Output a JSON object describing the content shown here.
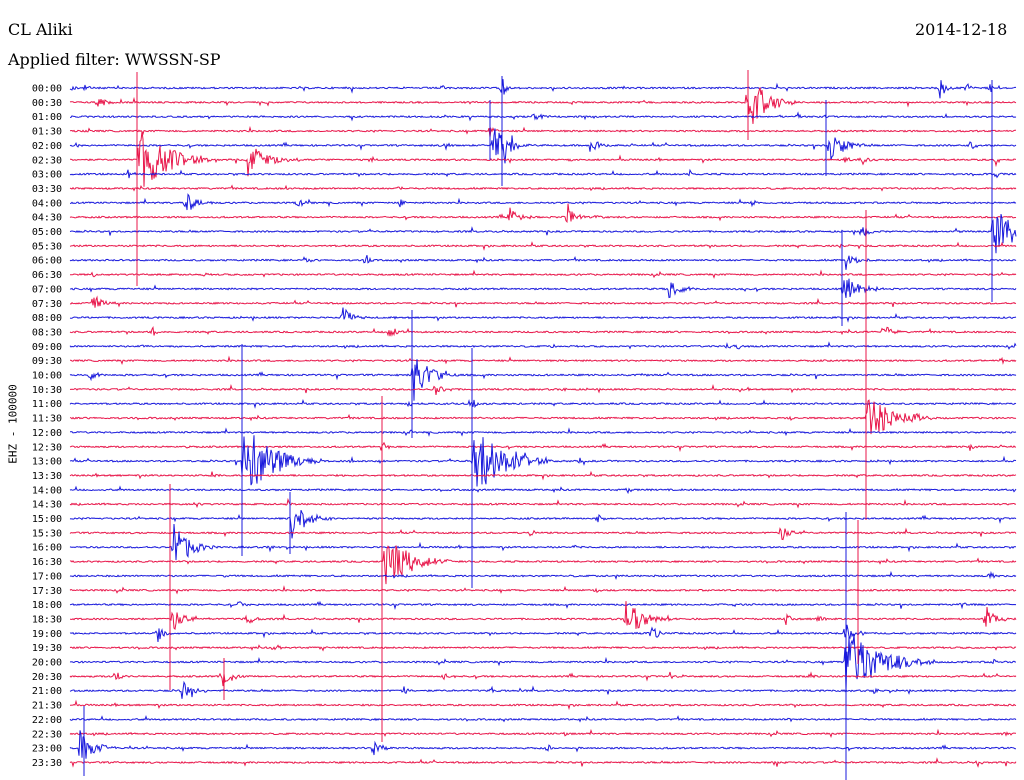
{
  "header": {
    "station": "CL Aliki",
    "date": "2014-12-18",
    "filter": "Applied filter: WWSSN-SP"
  },
  "channel_label": "EHZ - 100000",
  "colors": {
    "odd_trace": "#1a1adc",
    "even_trace": "#e8164a"
  },
  "time_labels": [
    "00:00",
    "00:30",
    "01:00",
    "01:30",
    "02:00",
    "02:30",
    "03:00",
    "03:30",
    "04:00",
    "04:30",
    "05:00",
    "05:30",
    "06:00",
    "06:30",
    "07:00",
    "07:30",
    "08:00",
    "08:30",
    "09:00",
    "09:30",
    "10:00",
    "10:30",
    "11:00",
    "11:30",
    "12:00",
    "12:30",
    "13:00",
    "13:30",
    "14:00",
    "14:30",
    "15:00",
    "15:30",
    "16:00",
    "16:30",
    "17:00",
    "17:30",
    "18:00",
    "18:30",
    "19:00",
    "19:30",
    "20:00",
    "20:30",
    "21:00",
    "21:30",
    "22:00",
    "22:30",
    "23:00",
    "23:30"
  ]
}
